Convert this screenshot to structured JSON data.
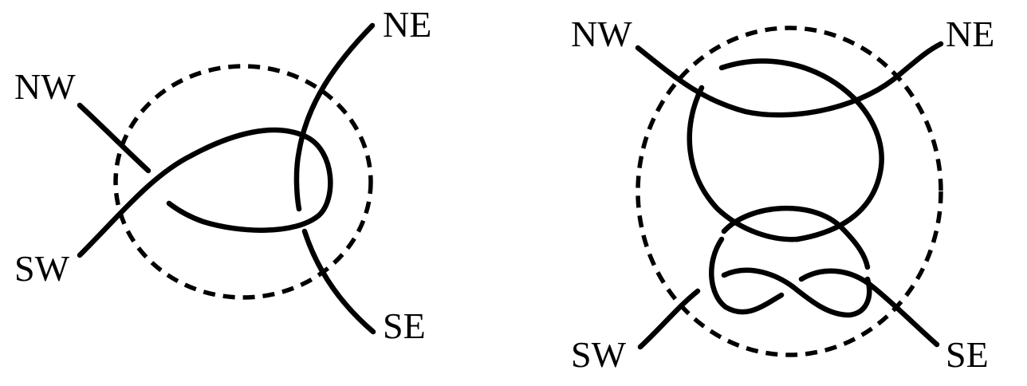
{
  "left_tangle": {
    "labels": {
      "nw": "NW",
      "ne": "NE",
      "sw": "SW",
      "se": "SE"
    }
  },
  "right_tangle": {
    "labels": {
      "nw": "NW",
      "ne": "NE",
      "sw": "SW",
      "se": "SE"
    }
  },
  "colors": {
    "stroke": "#000000",
    "background": "#ffffff"
  }
}
